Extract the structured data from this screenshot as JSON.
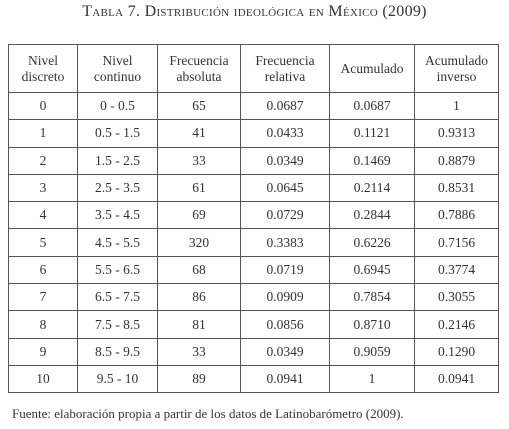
{
  "title": "Tabla 7. Distribución ideológica en México (2009)",
  "table": {
    "headers": [
      [
        "Nivel",
        "discreto"
      ],
      [
        "Nivel",
        "continuo"
      ],
      [
        "Frecuencia",
        "absoluta"
      ],
      [
        "Frecuencia",
        "relativa"
      ],
      [
        "Acumulado"
      ],
      [
        "Acumulado",
        "inverso"
      ]
    ],
    "rows": [
      [
        "0",
        "0 - 0.5",
        "65",
        "0.0687",
        "0.0687",
        "1"
      ],
      [
        "1",
        "0.5 - 1.5",
        "41",
        "0.0433",
        "0.1121",
        "0.9313"
      ],
      [
        "2",
        "1.5 - 2.5",
        "33",
        "0.0349",
        "0.1469",
        "0.8879"
      ],
      [
        "3",
        "2.5 - 3.5",
        "61",
        "0.0645",
        "0.2114",
        "0.8531"
      ],
      [
        "4",
        "3.5 - 4.5",
        "69",
        "0.0729",
        "0.2844",
        "0.7886"
      ],
      [
        "5",
        "4.5 - 5.5",
        "320",
        "0.3383",
        "0.6226",
        "0.7156"
      ],
      [
        "6",
        "5.5 - 6.5",
        "68",
        "0.0719",
        "0.6945",
        "0.3774"
      ],
      [
        "7",
        "6.5 - 7.5",
        "86",
        "0.0909",
        "0.7854",
        "0.3055"
      ],
      [
        "8",
        "7.5 - 8.5",
        "81",
        "0.0856",
        "0.8710",
        "0.2146"
      ],
      [
        "9",
        "8.5 - 9.5",
        "33",
        "0.0349",
        "0.9059",
        "0.1290"
      ],
      [
        "10",
        "9.5 - 10",
        "89",
        "0.0941",
        "1",
        "0.0941"
      ]
    ]
  },
  "footer": "Fuente: elaboración propia a partir de los datos de Latinobarómetro (2009)."
}
